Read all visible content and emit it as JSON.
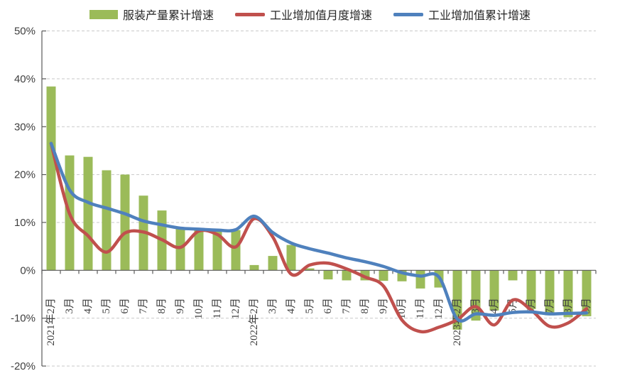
{
  "legend": {
    "items": [
      {
        "label": "服装产量累计增速",
        "marker": "bar",
        "color": "#9BBB59"
      },
      {
        "label": "工业增加值月度增速",
        "marker": "line",
        "color": "#C0504D"
      },
      {
        "label": "工业增加值累计增速",
        "marker": "line",
        "color": "#4F81BD"
      }
    ]
  },
  "y_axis": {
    "tick_labels": [
      "50%",
      "40%",
      "30%",
      "20%",
      "10%",
      "0%",
      "-10%",
      "-20%"
    ],
    "tick_values": [
      50,
      40,
      30,
      20,
      10,
      0,
      -10,
      -20
    ]
  },
  "colors": {
    "bar_green": "#9BBB59",
    "line_red": "#C0504D",
    "line_blue": "#4F81BD",
    "gridline": "#C9C9C9",
    "axis": "#595959",
    "tick_text": "#3F3F3F"
  },
  "chart_data": {
    "type": "bar",
    "subtype": "combo-bar-and-smooth-lines",
    "title": "",
    "xlabel": "",
    "ylabel": "",
    "ylim": [
      -20,
      50
    ],
    "y_tick_step": 10,
    "y_tick_format": "percent",
    "grid": "horizontal-dashed",
    "legend_position": "top",
    "categories": [
      "2021年2月",
      "3月",
      "4月",
      "5月",
      "6月",
      "7月",
      "8月",
      "9月",
      "10月",
      "11月",
      "12月",
      "2022年2月",
      "3月",
      "4月",
      "5月",
      "6月",
      "7月",
      "8月",
      "9月",
      "10月",
      "11月",
      "12月",
      "2023年2月",
      "3月",
      "4月",
      "5月",
      "6月",
      "7月",
      "8月",
      "9月"
    ],
    "series": [
      {
        "name": "服装产量累计增速",
        "type": "bar",
        "color": "#9BBB59",
        "values": [
          38.4,
          24.0,
          23.7,
          20.9,
          20.0,
          15.6,
          12.5,
          9.0,
          8.4,
          8.2,
          8.4,
          1.1,
          3.0,
          5.3,
          0.4,
          -1.9,
          -2.1,
          -2.1,
          -2.2,
          -2.3,
          -3.8,
          -3.6,
          -12.4,
          -10.5,
          -8.4,
          -2.1,
          -8.1,
          -9.4,
          -9.8,
          -9.6
        ]
      },
      {
        "name": "工业增加值月度增速",
        "type": "line",
        "color": "#C0504D",
        "values": [
          26.5,
          11.8,
          7.2,
          3.8,
          7.8,
          8.0,
          6.4,
          4.8,
          8.2,
          7.5,
          4.9,
          10.8,
          7.0,
          -0.8,
          1.1,
          1.5,
          0.3,
          -1.4,
          -3.3,
          -10.4,
          -12.8,
          -11.9,
          -10.3,
          -7.6,
          -11.4,
          -6.2,
          -8.3,
          -11.7,
          -11.0,
          -8.0
        ]
      },
      {
        "name": "工业增加值累计增速",
        "type": "line",
        "color": "#4F81BD",
        "values": [
          26.5,
          16.8,
          14.2,
          13.0,
          11.8,
          10.3,
          9.5,
          8.8,
          8.6,
          8.4,
          8.5,
          11.3,
          7.9,
          5.7,
          4.5,
          3.6,
          2.6,
          1.8,
          0.8,
          -0.5,
          -1.2,
          -1.4,
          -10.2,
          -9.1,
          -9.4,
          -8.8,
          -8.7,
          -9.1,
          -9.0,
          -8.9
        ]
      }
    ]
  }
}
